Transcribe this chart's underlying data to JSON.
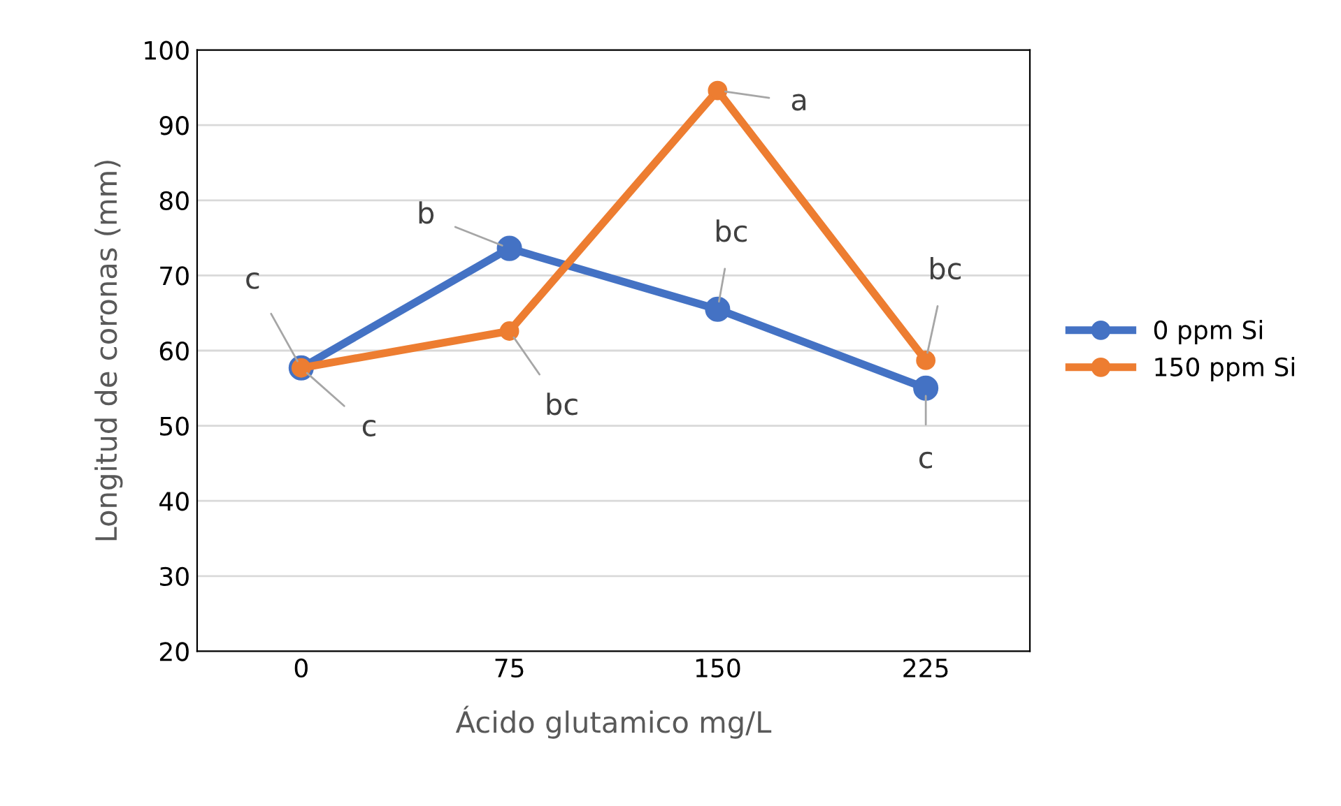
{
  "chart_data": {
    "type": "line",
    "xlabel": "Ácido glutamico mg/L",
    "ylabel": "Longitud de coronas (mm)",
    "categories": [
      "0",
      "75",
      "150",
      "225"
    ],
    "series": [
      {
        "name": "0 ppm Si",
        "color": "#4472c4",
        "values": [
          57.7,
          73.6,
          65.5,
          55.0
        ]
      },
      {
        "name": "150 ppm Si",
        "color": "#ed7d31",
        "values": [
          57.7,
          62.6,
          94.6,
          58.7
        ]
      }
    ],
    "ylim": [
      20,
      100
    ],
    "yticks": [
      20,
      30,
      40,
      50,
      60,
      70,
      80,
      90,
      100
    ],
    "grid": "y",
    "legend": "right",
    "marker": "circle",
    "line_style": "solid",
    "annotations": [
      {
        "text": "c",
        "x": "0",
        "y": 57.7
      },
      {
        "text": "c",
        "x": "0",
        "y": 57.7
      },
      {
        "text": "b",
        "x": "75",
        "y": 73.6
      },
      {
        "text": "bc",
        "x": "75",
        "y": 62.6
      },
      {
        "text": "bc",
        "x": "150",
        "y": 65.5
      },
      {
        "text": "a",
        "x": "150",
        "y": 94.6
      },
      {
        "text": "bc",
        "x": "225",
        "y": 58.7
      },
      {
        "text": "c",
        "x": "225",
        "y": 55.0
      }
    ]
  }
}
